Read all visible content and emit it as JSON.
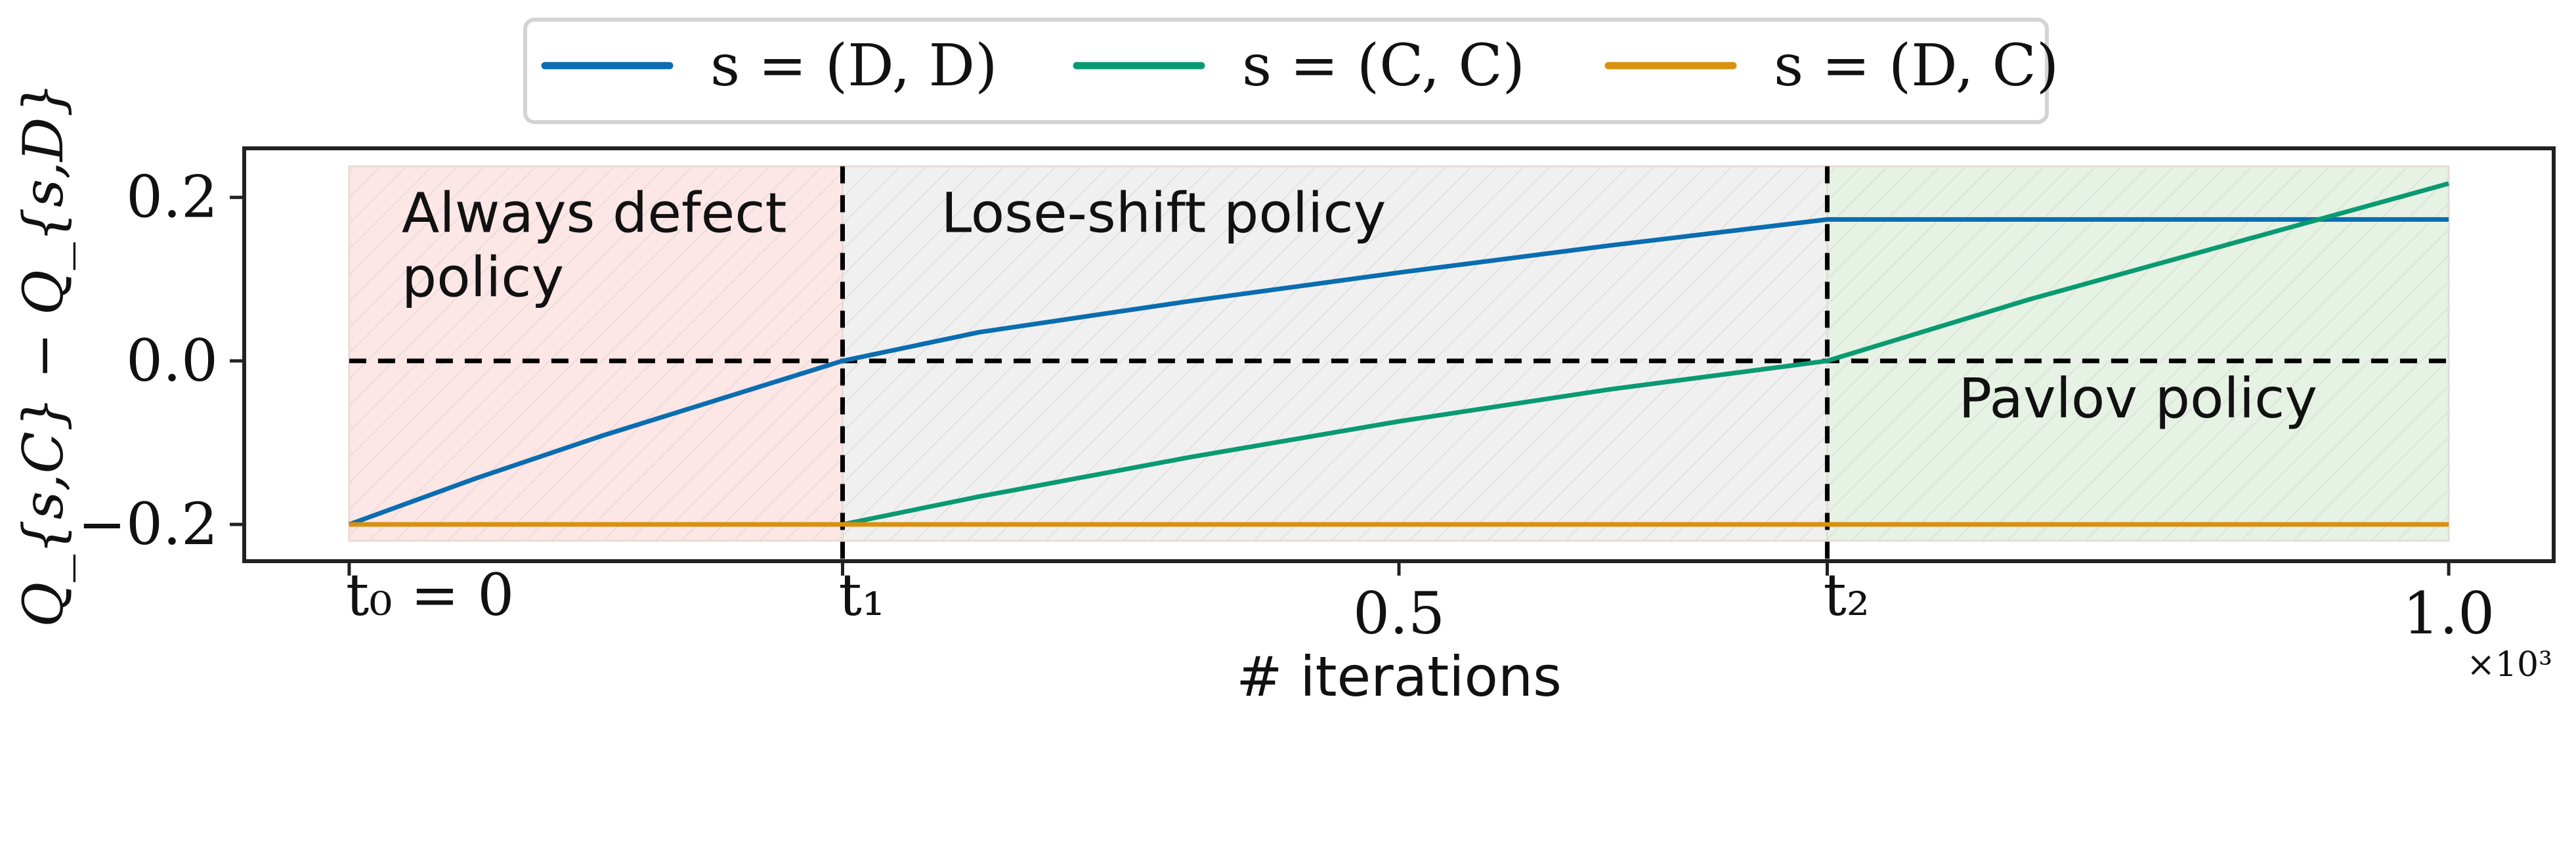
{
  "chart_data": {
    "type": "line",
    "title": "",
    "xlabel": "# iterations",
    "ylabel": "Q_{s,C} − Q_{s,D}",
    "x_multiplier_label": "×10³",
    "xlim": [
      -0.05,
      1.05
    ],
    "ylim": [
      -0.245,
      0.26
    ],
    "y_ticks": [
      {
        "value": -0.2,
        "label": "−0.2"
      },
      {
        "value": 0.0,
        "label": "0.0"
      },
      {
        "value": 0.2,
        "label": "0.2"
      }
    ],
    "x_ticks": [
      {
        "value": 0.0,
        "label": "t₀ = 0"
      },
      {
        "value": 0.235,
        "label": "t₁"
      },
      {
        "value": 0.5,
        "label": "0.5"
      },
      {
        "value": 0.704,
        "label": "t₂"
      },
      {
        "value": 1.0,
        "label": "1.0"
      }
    ],
    "legend_position": "top-center, outside",
    "series": [
      {
        "name": "s = (D, D)",
        "color": "#0a6db0",
        "x": [
          0.0,
          0.06,
          0.12,
          0.18,
          0.235,
          0.3,
          0.4,
          0.5,
          0.6,
          0.704,
          0.8,
          0.9,
          1.0
        ],
        "y": [
          -0.2,
          -0.144,
          -0.092,
          -0.044,
          0.0,
          0.035,
          0.073,
          0.108,
          0.141,
          0.173,
          0.173,
          0.173,
          0.173
        ]
      },
      {
        "name": "s = (C, C)",
        "color": "#0a9a72",
        "x": [
          0.0,
          0.235,
          0.3,
          0.4,
          0.5,
          0.6,
          0.704,
          0.8,
          0.9,
          1.0
        ],
        "y": [
          -0.2,
          -0.2,
          -0.166,
          -0.118,
          -0.074,
          -0.035,
          0.0,
          0.075,
          0.146,
          0.217
        ]
      },
      {
        "name": "s = (D, C)",
        "color": "#d8900e",
        "x": [
          0.0,
          0.235,
          0.5,
          0.704,
          1.0
        ],
        "y": [
          -0.2,
          -0.2,
          -0.2,
          -0.2,
          -0.2
        ]
      }
    ],
    "reference_lines": {
      "horizontal_y": 0.0,
      "vertical_x": [
        0.235,
        0.704
      ],
      "style": "dashed black"
    },
    "regions": [
      {
        "label_lines": [
          "Always defect",
          "policy"
        ],
        "x0": 0.0,
        "x1": 0.235,
        "fill": "#fde6e6",
        "label_anchor": "top-left"
      },
      {
        "label_lines": [
          "Lose-shift policy"
        ],
        "x0": 0.235,
        "x1": 0.704,
        "fill": "#f1f0f0",
        "label_anchor": "top-left"
      },
      {
        "label_lines": [
          "Pavlov policy"
        ],
        "x0": 0.704,
        "x1": 1.0,
        "fill": "#e6f2e4",
        "label_anchor": "middle"
      }
    ],
    "region_y_range": [
      -0.22,
      0.238
    ]
  }
}
